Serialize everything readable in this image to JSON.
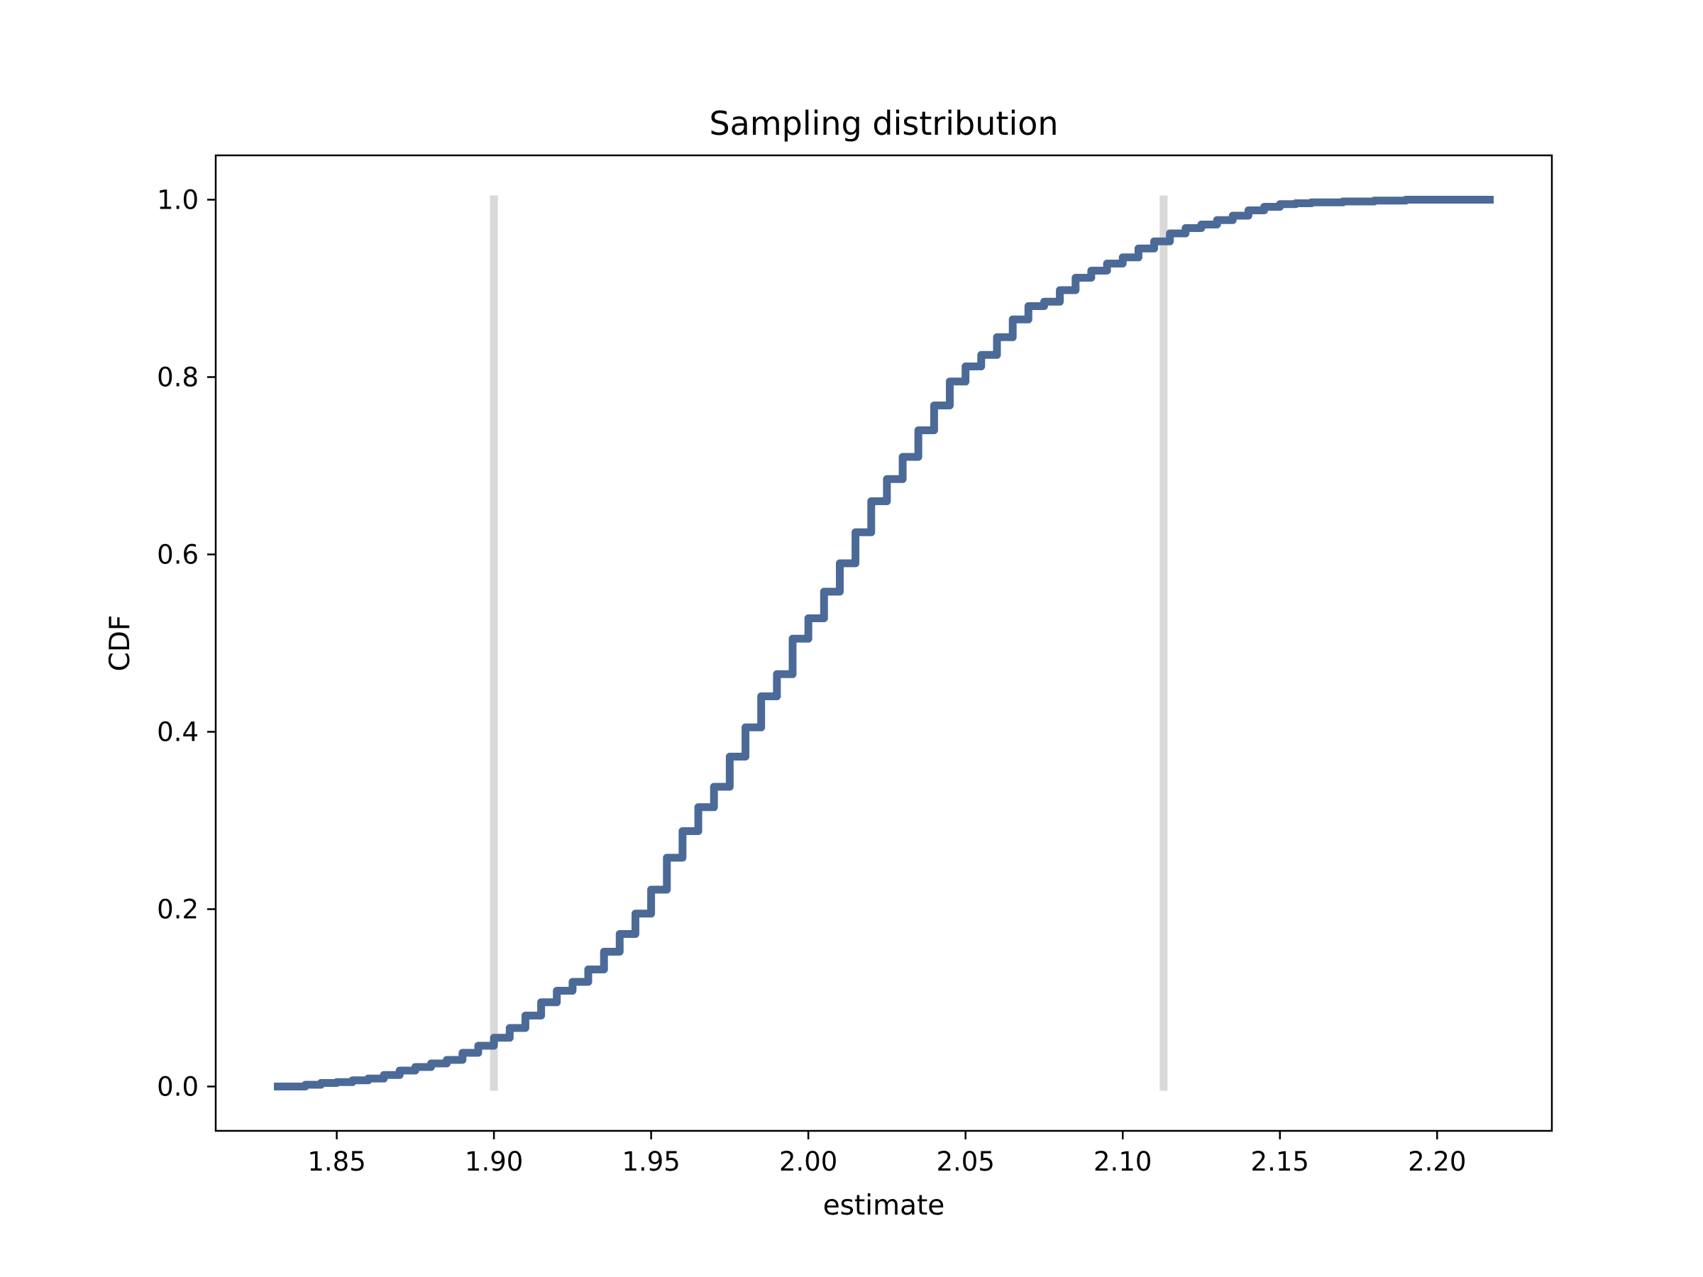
{
  "chart_data": {
    "type": "line",
    "title": "Sampling distribution",
    "xlabel": "estimate",
    "ylabel": "CDF",
    "xlim": [
      1.8115,
      2.2365
    ],
    "ylim": [
      -0.05,
      1.05
    ],
    "grid": false,
    "legend": "none",
    "x_ticks": [
      "1.85",
      "1.90",
      "1.95",
      "2.00",
      "2.05",
      "2.10",
      "2.15",
      "2.20"
    ],
    "x_tick_values": [
      1.85,
      1.9,
      1.95,
      2.0,
      2.05,
      2.1,
      2.15,
      2.2
    ],
    "y_ticks": [
      "0.0",
      "0.2",
      "0.4",
      "0.6",
      "0.8",
      "1.0"
    ],
    "y_tick_values": [
      0.0,
      0.2,
      0.4,
      0.6,
      0.8,
      1.0
    ],
    "series": [
      {
        "color": "#4c6a98",
        "x": [
          1.83,
          1.84,
          1.845,
          1.85,
          1.855,
          1.86,
          1.865,
          1.87,
          1.875,
          1.88,
          1.885,
          1.89,
          1.895,
          1.9,
          1.905,
          1.91,
          1.915,
          1.92,
          1.925,
          1.93,
          1.935,
          1.94,
          1.945,
          1.95,
          1.955,
          1.96,
          1.965,
          1.97,
          1.975,
          1.98,
          1.985,
          1.99,
          1.995,
          2.0,
          2.005,
          2.01,
          2.015,
          2.02,
          2.025,
          2.03,
          2.035,
          2.04,
          2.045,
          2.05,
          2.055,
          2.06,
          2.065,
          2.07,
          2.075,
          2.08,
          2.085,
          2.09,
          2.095,
          2.1,
          2.105,
          2.11,
          2.115,
          2.12,
          2.125,
          2.13,
          2.135,
          2.14,
          2.145,
          2.15,
          2.155,
          2.16,
          2.17,
          2.18,
          2.19,
          2.2,
          2.21,
          2.218
        ],
        "y": [
          0.0,
          0.002,
          0.004,
          0.005,
          0.007,
          0.009,
          0.013,
          0.018,
          0.022,
          0.026,
          0.03,
          0.038,
          0.046,
          0.055,
          0.066,
          0.08,
          0.095,
          0.108,
          0.118,
          0.132,
          0.152,
          0.172,
          0.195,
          0.222,
          0.258,
          0.288,
          0.315,
          0.338,
          0.372,
          0.405,
          0.44,
          0.465,
          0.505,
          0.528,
          0.558,
          0.59,
          0.625,
          0.66,
          0.685,
          0.71,
          0.74,
          0.768,
          0.795,
          0.812,
          0.825,
          0.845,
          0.865,
          0.88,
          0.885,
          0.898,
          0.912,
          0.92,
          0.928,
          0.935,
          0.945,
          0.953,
          0.962,
          0.968,
          0.972,
          0.977,
          0.982,
          0.988,
          0.992,
          0.995,
          0.996,
          0.997,
          0.998,
          0.999,
          1.0,
          1.0,
          1.0,
          1.0
        ]
      }
    ],
    "reference_lines": [
      {
        "x": 1.9,
        "ymin": 0.0,
        "ymax": 1.0,
        "color": "#d9d9d9"
      },
      {
        "x": 2.113,
        "ymin": 0.0,
        "ymax": 1.0,
        "color": "#d9d9d9"
      }
    ]
  }
}
